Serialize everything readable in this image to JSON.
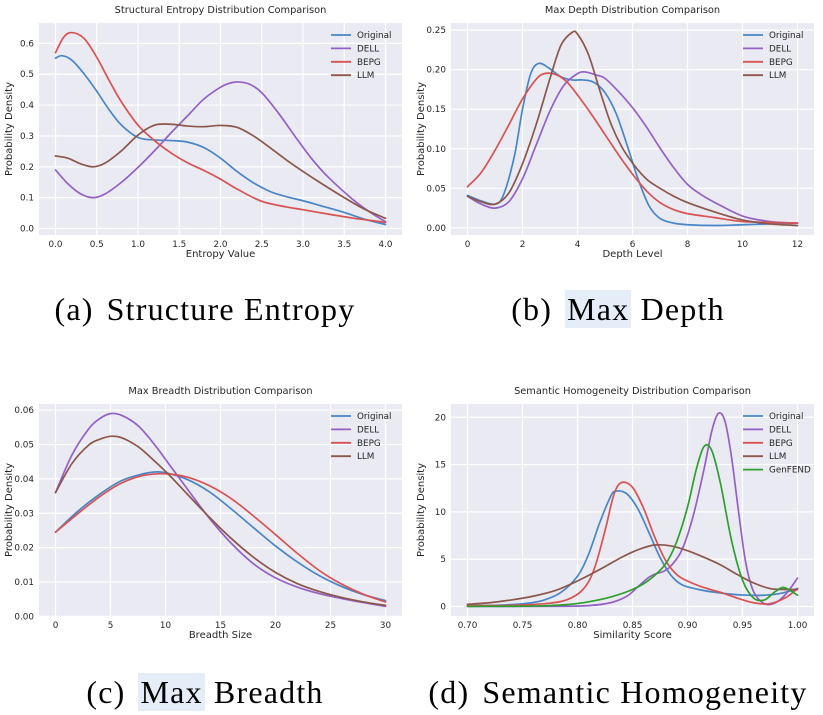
{
  "figure": {
    "colors": {
      "axes_background": "#eaeaf2",
      "grid": "#ffffff",
      "text": "#262626",
      "title_text": "#1f1f1f",
      "caption_highlight": "#e4edf8"
    },
    "captions": {
      "a": {
        "prefix": "(a)",
        "pre": "Structure Entropy",
        "highlight": "",
        "post": ""
      },
      "b": {
        "prefix": "(b)",
        "pre": "",
        "highlight": "Max",
        "post": " Depth"
      },
      "c": {
        "prefix": "(c)",
        "pre": "",
        "highlight": "Max",
        "post": " Breadth"
      },
      "d": {
        "prefix": "(d)",
        "pre": "Semantic Homogeneity",
        "highlight": "",
        "post": ""
      }
    }
  },
  "chart_data": [
    {
      "id": "structural-entropy",
      "type": "line",
      "title": "Structural Entropy Distribution Comparison",
      "xlabel": "Entropy Value",
      "ylabel": "Probability Density",
      "xlim": [
        -0.2,
        4.2
      ],
      "ylim": [
        -0.021,
        0.666
      ],
      "xticks": [
        0,
        0.5,
        1.0,
        1.5,
        2.0,
        2.5,
        3.0,
        3.5,
        4.0
      ],
      "xtick_labels": [
        "0.0",
        "0.5",
        "1.0",
        "1.5",
        "2.0",
        "2.5",
        "3.0",
        "3.5",
        "4.0"
      ],
      "yticks": [
        0,
        0.1,
        0.2,
        0.3,
        0.4,
        0.5,
        0.6
      ],
      "ytick_labels": [
        "0.0",
        "0.1",
        "0.2",
        "0.3",
        "0.4",
        "0.5",
        "0.6"
      ],
      "grid": true,
      "legend_position": "upper right",
      "series": [
        {
          "name": "Original",
          "color": "#4886c7",
          "x": [
            0,
            0.08,
            0.2,
            0.35,
            0.5,
            0.65,
            0.8,
            1.0,
            1.2,
            1.4,
            1.6,
            1.8,
            2.0,
            2.2,
            2.4,
            2.6,
            2.8,
            3.0,
            3.2,
            3.5,
            3.75,
            4.0
          ],
          "y": [
            0.552,
            0.56,
            0.545,
            0.5,
            0.445,
            0.385,
            0.335,
            0.295,
            0.287,
            0.285,
            0.28,
            0.262,
            0.228,
            0.185,
            0.148,
            0.12,
            0.103,
            0.09,
            0.075,
            0.052,
            0.03,
            0.013
          ]
        },
        {
          "name": "DELL",
          "color": "#9360c6",
          "x": [
            0,
            0.15,
            0.3,
            0.45,
            0.6,
            0.8,
            1.0,
            1.2,
            1.4,
            1.6,
            1.8,
            2.0,
            2.1,
            2.2,
            2.35,
            2.5,
            2.7,
            2.9,
            3.1,
            3.3,
            3.6,
            3.8,
            4.0
          ],
          "y": [
            0.19,
            0.145,
            0.113,
            0.1,
            0.112,
            0.15,
            0.198,
            0.252,
            0.31,
            0.365,
            0.42,
            0.458,
            0.47,
            0.475,
            0.468,
            0.44,
            0.375,
            0.3,
            0.228,
            0.168,
            0.095,
            0.055,
            0.022
          ]
        },
        {
          "name": "BEPG",
          "color": "#d95252",
          "x": [
            0,
            0.1,
            0.2,
            0.35,
            0.5,
            0.65,
            0.8,
            1.0,
            1.2,
            1.4,
            1.6,
            1.8,
            2.0,
            2.2,
            2.5,
            2.8,
            3.0,
            3.3,
            3.6,
            3.8,
            4.0
          ],
          "y": [
            0.57,
            0.62,
            0.635,
            0.615,
            0.555,
            0.48,
            0.41,
            0.335,
            0.285,
            0.245,
            0.213,
            0.188,
            0.16,
            0.128,
            0.088,
            0.07,
            0.061,
            0.047,
            0.034,
            0.027,
            0.02
          ]
        },
        {
          "name": "LLM",
          "color": "#8c564b",
          "x": [
            0,
            0.15,
            0.3,
            0.45,
            0.6,
            0.8,
            1.0,
            1.2,
            1.4,
            1.6,
            1.8,
            2.0,
            2.2,
            2.4,
            2.6,
            2.8,
            3.0,
            3.2,
            3.5,
            3.75,
            4.0
          ],
          "y": [
            0.235,
            0.228,
            0.21,
            0.2,
            0.212,
            0.252,
            0.303,
            0.335,
            0.338,
            0.332,
            0.33,
            0.334,
            0.328,
            0.3,
            0.262,
            0.222,
            0.185,
            0.15,
            0.1,
            0.062,
            0.033
          ]
        }
      ]
    },
    {
      "id": "max-depth",
      "type": "line",
      "title": "Max Depth Distribution Comparison",
      "xlabel": "Depth Level",
      "ylabel": "Probability Density",
      "xlim": [
        -0.6,
        12.6
      ],
      "ylim": [
        -0.009,
        0.259
      ],
      "xticks": [
        0,
        2,
        4,
        6,
        8,
        10,
        12
      ],
      "xtick_labels": [
        "0",
        "2",
        "4",
        "6",
        "8",
        "10",
        "12"
      ],
      "yticks": [
        0,
        0.05,
        0.1,
        0.15,
        0.2,
        0.25
      ],
      "ytick_labels": [
        "0.00",
        "0.05",
        "0.10",
        "0.15",
        "0.20",
        "0.25"
      ],
      "grid": true,
      "legend_position": "upper right",
      "series": [
        {
          "name": "Original",
          "color": "#4886c7",
          "x": [
            0,
            0.5,
            1.0,
            1.3,
            1.7,
            2.0,
            2.3,
            2.6,
            3.0,
            3.4,
            3.8,
            4.2,
            4.6,
            5.0,
            5.4,
            5.8,
            6.2,
            6.6,
            7.0,
            7.5,
            8,
            9,
            10,
            11,
            12
          ],
          "y": [
            0.041,
            0.034,
            0.03,
            0.041,
            0.09,
            0.15,
            0.195,
            0.208,
            0.201,
            0.191,
            0.187,
            0.187,
            0.184,
            0.171,
            0.145,
            0.105,
            0.062,
            0.028,
            0.012,
            0.006,
            0.004,
            0.003,
            0.004,
            0.005,
            0.006
          ]
        },
        {
          "name": "DELL",
          "color": "#9360c6",
          "x": [
            0,
            0.5,
            1.0,
            1.5,
            2.0,
            2.5,
            3.0,
            3.5,
            4.0,
            4.3,
            4.7,
            5.0,
            5.5,
            6.0,
            6.5,
            7.0,
            7.5,
            8.0,
            8.5,
            9.0,
            10,
            11,
            12
          ],
          "y": [
            0.04,
            0.03,
            0.025,
            0.033,
            0.062,
            0.105,
            0.148,
            0.18,
            0.195,
            0.197,
            0.193,
            0.189,
            0.172,
            0.152,
            0.128,
            0.101,
            0.076,
            0.055,
            0.042,
            0.032,
            0.015,
            0.008,
            0.006
          ]
        },
        {
          "name": "BEPG",
          "color": "#d95252",
          "x": [
            0,
            0.5,
            1.0,
            1.5,
            2.0,
            2.5,
            2.8,
            3.2,
            3.6,
            4.0,
            4.5,
            5.0,
            5.5,
            6.0,
            6.5,
            7.0,
            7.5,
            8,
            9,
            10,
            11,
            12
          ],
          "y": [
            0.052,
            0.07,
            0.098,
            0.13,
            0.163,
            0.188,
            0.195,
            0.194,
            0.185,
            0.168,
            0.144,
            0.118,
            0.092,
            0.068,
            0.047,
            0.032,
            0.023,
            0.018,
            0.013,
            0.008,
            0.007,
            0.006
          ]
        },
        {
          "name": "LLM",
          "color": "#8c564b",
          "x": [
            0,
            0.5,
            1.0,
            1.5,
            2.0,
            2.5,
            3.0,
            3.4,
            3.8,
            4.0,
            4.4,
            4.8,
            5.2,
            5.6,
            6.0,
            6.5,
            7.0,
            7.5,
            8,
            9,
            10,
            11,
            12
          ],
          "y": [
            0.04,
            0.033,
            0.03,
            0.044,
            0.081,
            0.131,
            0.189,
            0.231,
            0.247,
            0.245,
            0.219,
            0.175,
            0.133,
            0.103,
            0.082,
            0.062,
            0.05,
            0.04,
            0.032,
            0.02,
            0.01,
            0.005,
            0.003
          ]
        }
      ]
    },
    {
      "id": "max-breadth",
      "type": "line",
      "title": "Max Breadth Distribution Comparison",
      "xlabel": "Breadth Size",
      "ylabel": "Probability Density",
      "xlim": [
        -1.5,
        31.5
      ],
      "ylim": [
        0.0001,
        0.0618
      ],
      "xticks": [
        0,
        5,
        10,
        15,
        20,
        25,
        30
      ],
      "xtick_labels": [
        "0",
        "5",
        "10",
        "15",
        "20",
        "25",
        "30"
      ],
      "yticks": [
        0,
        0.01,
        0.02,
        0.03,
        0.04,
        0.05,
        0.06
      ],
      "ytick_labels": [
        "0.00",
        "0.01",
        "0.02",
        "0.03",
        "0.04",
        "0.05",
        "0.06"
      ],
      "grid": true,
      "legend_position": "upper right",
      "series": [
        {
          "name": "Original",
          "color": "#4886c7",
          "x": [
            0,
            2,
            4,
            6,
            8,
            9,
            10,
            12,
            14,
            16,
            18,
            20,
            22,
            24,
            26,
            28,
            30
          ],
          "y": [
            0.0245,
            0.0305,
            0.0355,
            0.0395,
            0.0415,
            0.042,
            0.0418,
            0.0398,
            0.0362,
            0.0312,
            0.0258,
            0.0205,
            0.0158,
            0.0118,
            0.0087,
            0.0063,
            0.0046
          ]
        },
        {
          "name": "DELL",
          "color": "#9360c6",
          "x": [
            0,
            1.5,
            3,
            4,
            5,
            6,
            7.5,
            9,
            10.5,
            12,
            14,
            16,
            18,
            20,
            22,
            24,
            26,
            28,
            30
          ],
          "y": [
            0.036,
            0.047,
            0.0545,
            0.0575,
            0.059,
            0.0585,
            0.0555,
            0.05,
            0.0435,
            0.037,
            0.0285,
            0.0212,
            0.0153,
            0.0112,
            0.0085,
            0.0066,
            0.0052,
            0.004,
            0.0029
          ]
        },
        {
          "name": "BEPG",
          "color": "#d95252",
          "x": [
            0,
            2,
            4,
            6,
            8,
            10,
            12,
            14,
            16,
            18,
            20,
            22,
            24,
            26,
            28,
            30
          ],
          "y": [
            0.0245,
            0.0298,
            0.0348,
            0.0388,
            0.041,
            0.0415,
            0.0405,
            0.038,
            0.0342,
            0.0292,
            0.0238,
            0.0183,
            0.0133,
            0.0094,
            0.0064,
            0.0042
          ]
        },
        {
          "name": "LLM",
          "color": "#8c564b",
          "x": [
            0,
            1.5,
            3,
            4,
            5,
            6,
            7.5,
            9,
            10.5,
            12,
            14,
            16,
            18,
            20,
            22,
            24,
            26,
            28,
            30
          ],
          "y": [
            0.036,
            0.0445,
            0.0498,
            0.0515,
            0.0524,
            0.052,
            0.0494,
            0.0452,
            0.0406,
            0.0355,
            0.0288,
            0.0226,
            0.0172,
            0.0128,
            0.0095,
            0.0072,
            0.0055,
            0.0042,
            0.0032
          ]
        }
      ]
    },
    {
      "id": "semantic-homogeneity",
      "type": "line",
      "title": "Semantic Homogeneity Distribution Comparison",
      "xlabel": "Similarity Score",
      "ylabel": "Probability Density",
      "xlim": [
        0.685,
        1.015
      ],
      "ylim": [
        -1.0,
        21.4
      ],
      "xticks": [
        0.7,
        0.75,
        0.8,
        0.85,
        0.9,
        0.95,
        1.0
      ],
      "xtick_labels": [
        "0.70",
        "0.75",
        "0.80",
        "0.85",
        "0.90",
        "0.95",
        "1.00"
      ],
      "yticks": [
        0,
        5,
        10,
        15,
        20
      ],
      "ytick_labels": [
        "0",
        "5",
        "10",
        "15",
        "20"
      ],
      "grid": true,
      "legend_position": "upper right",
      "series": [
        {
          "name": "Original",
          "color": "#4886c7",
          "x": [
            0.7,
            0.73,
            0.755,
            0.77,
            0.785,
            0.8,
            0.81,
            0.82,
            0.83,
            0.835,
            0.845,
            0.855,
            0.865,
            0.875,
            0.885,
            0.895,
            0.91,
            0.925,
            0.94,
            0.955,
            0.97,
            0.985,
            1.0
          ],
          "y": [
            0.1,
            0.15,
            0.35,
            0.7,
            1.5,
            3.2,
            5.5,
            8.8,
            11.6,
            12.2,
            11.9,
            10.3,
            7.8,
            5.2,
            3.3,
            2.3,
            1.8,
            1.5,
            1.3,
            1.2,
            1.2,
            1.4,
            1.9
          ]
        },
        {
          "name": "DELL",
          "color": "#9360c6",
          "x": [
            0.7,
            0.78,
            0.81,
            0.83,
            0.845,
            0.855,
            0.865,
            0.872,
            0.878,
            0.885,
            0.895,
            0.905,
            0.915,
            0.922,
            0.928,
            0.934,
            0.94,
            0.947,
            0.953,
            0.96,
            0.97,
            0.98,
            0.99,
            1.0
          ],
          "y": [
            0.02,
            0.03,
            0.1,
            0.4,
            1.1,
            2.1,
            3.1,
            3.5,
            3.7,
            4.3,
            6.0,
            9.5,
            14.5,
            18.5,
            20.4,
            19.6,
            15.8,
            9.5,
            4.6,
            1.6,
            0.3,
            0.4,
            1.4,
            3.0
          ]
        },
        {
          "name": "BEPG",
          "color": "#d95252",
          "x": [
            0.7,
            0.74,
            0.77,
            0.79,
            0.805,
            0.815,
            0.825,
            0.833,
            0.84,
            0.85,
            0.86,
            0.87,
            0.88,
            0.89,
            0.9,
            0.915,
            0.93,
            0.945,
            0.96,
            0.975,
            0.99,
            1.0
          ],
          "y": [
            0.1,
            0.12,
            0.3,
            0.7,
            1.8,
            3.9,
            8.0,
            11.8,
            13.1,
            12.6,
            10.4,
            7.4,
            4.9,
            3.4,
            2.7,
            2.0,
            1.5,
            0.9,
            0.4,
            0.3,
            1.0,
            1.9
          ]
        },
        {
          "name": "LLM",
          "color": "#8c564b",
          "x": [
            0.7,
            0.72,
            0.74,
            0.76,
            0.78,
            0.8,
            0.82,
            0.84,
            0.855,
            0.87,
            0.885,
            0.9,
            0.915,
            0.93,
            0.945,
            0.96,
            0.975,
            0.99,
            1.0
          ],
          "y": [
            0.25,
            0.4,
            0.7,
            1.1,
            1.7,
            2.7,
            3.9,
            5.2,
            6.0,
            6.5,
            6.4,
            5.9,
            5.2,
            4.4,
            3.4,
            2.5,
            1.9,
            1.8,
            1.8
          ]
        },
        {
          "name": "GenFEND",
          "color": "#2ca02c",
          "x": [
            0.7,
            0.76,
            0.79,
            0.81,
            0.83,
            0.85,
            0.865,
            0.88,
            0.89,
            0.9,
            0.908,
            0.915,
            0.922,
            0.93,
            0.94,
            0.95,
            0.96,
            0.97,
            0.98,
            0.988,
            1.0
          ],
          "y": [
            0.02,
            0.05,
            0.2,
            0.5,
            1.0,
            1.8,
            2.8,
            4.5,
            6.8,
            10.5,
            14.5,
            16.9,
            16.5,
            13.0,
            7.0,
            2.8,
            0.9,
            0.7,
            1.6,
            2.0,
            1.2
          ]
        }
      ]
    }
  ]
}
